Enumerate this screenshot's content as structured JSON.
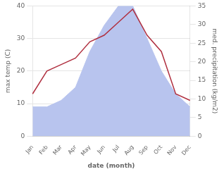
{
  "chart_data": {
    "type": "line",
    "categories": [
      "Jan",
      "Feb",
      "Mar",
      "Apr",
      "May",
      "Jun",
      "Jul",
      "Aug",
      "Sep",
      "Oct",
      "Nov",
      "Dec"
    ],
    "series": [
      {
        "type": "area",
        "color": "#b8c4ee",
        "values": [
          9,
          9,
          11,
          15,
          26,
          34,
          40,
          40,
          30,
          20,
          13,
          9
        ]
      },
      {
        "type": "line",
        "color": "#b03040",
        "values": [
          13,
          20,
          22,
          24,
          29,
          31,
          35,
          39,
          31,
          26,
          13,
          11
        ]
      }
    ],
    "xlabel": "date (month)",
    "ylabel": "max temp (C)",
    "y2label": "med. precipitation (kg/m2)",
    "ylim": [
      0,
      40
    ],
    "yticks": [
      0,
      10,
      20,
      30,
      40
    ],
    "y2lim": [
      0,
      35
    ],
    "y2ticks": [
      0,
      5,
      10,
      15,
      20,
      25,
      30,
      35
    ],
    "grid": true
  }
}
